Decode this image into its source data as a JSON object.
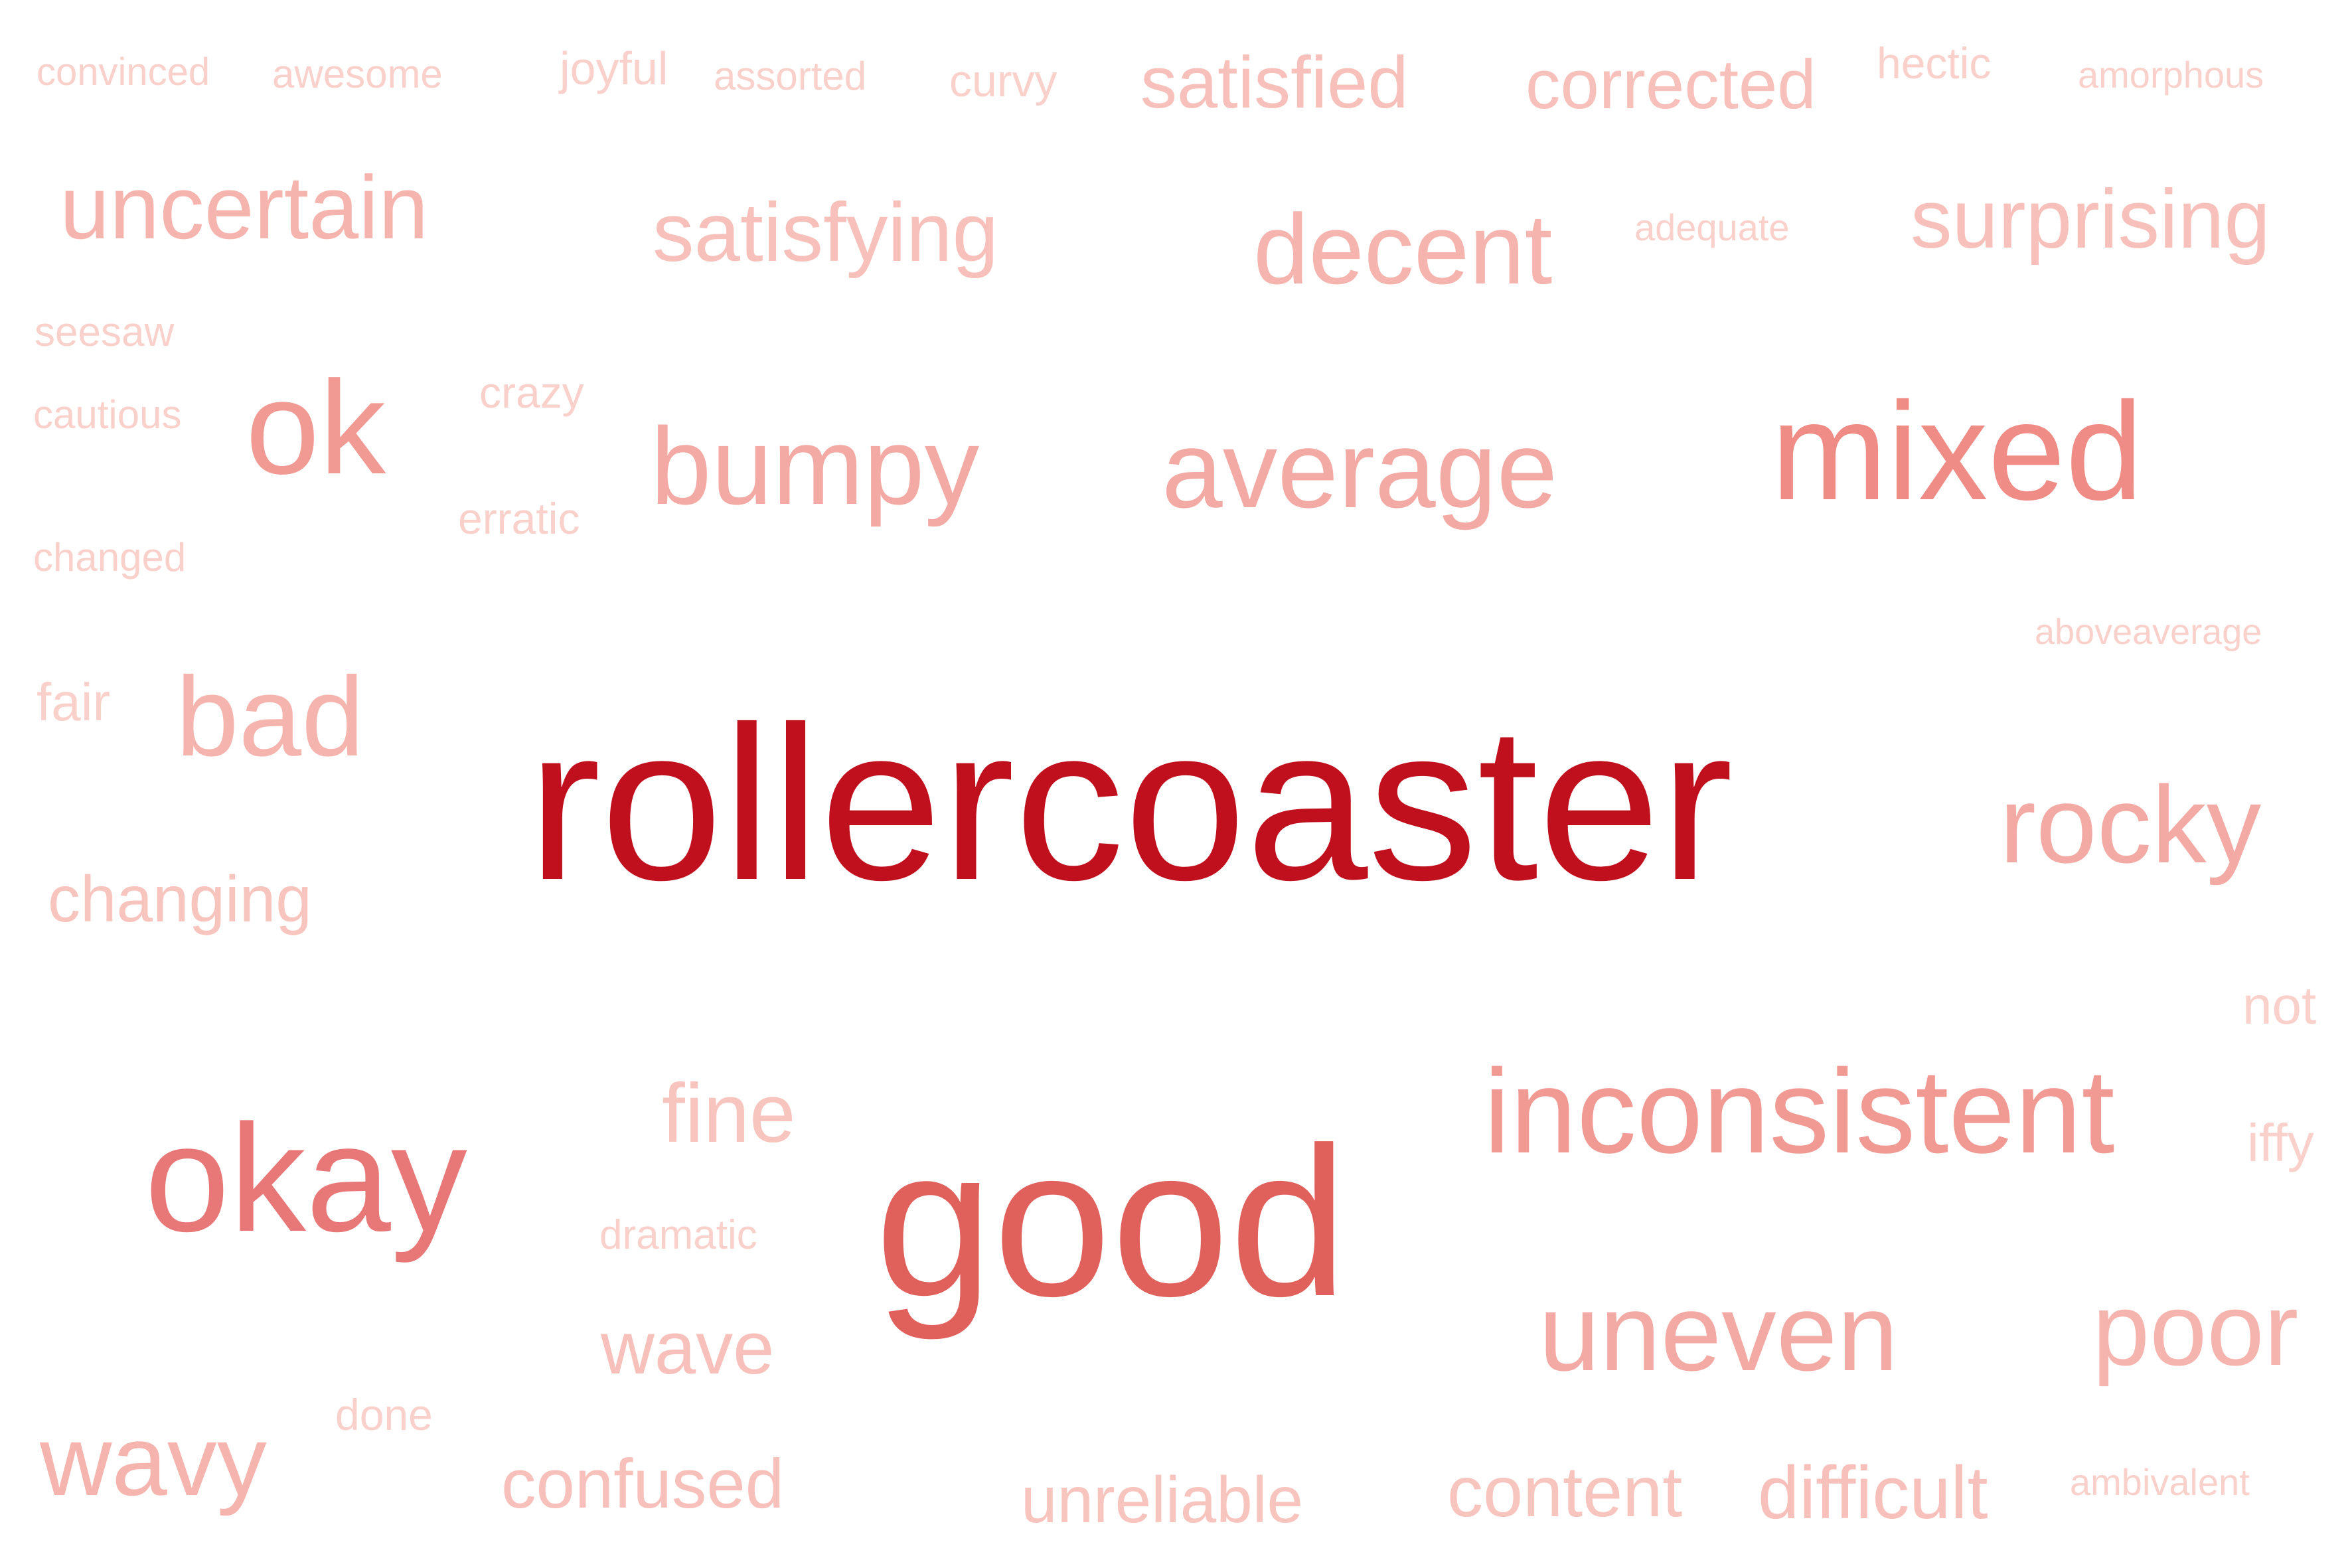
{
  "words": [
    {
      "text": "rollercoaster",
      "color": "#c0101e"
    },
    {
      "text": "good",
      "color": "#e0605c"
    },
    {
      "text": "okay",
      "color": "#e87878"
    },
    {
      "text": "mixed",
      "color": "#ef8c86"
    },
    {
      "text": "ok",
      "color": "#f19a94"
    },
    {
      "text": "inconsistent",
      "color": "#f19a94"
    },
    {
      "text": "average",
      "color": "#f4aaa4"
    },
    {
      "text": "bumpy",
      "color": "#f4aaa4"
    },
    {
      "text": "rocky",
      "color": "#f4aaa4"
    },
    {
      "text": "uneven",
      "color": "#f4aaa4"
    },
    {
      "text": "poor",
      "color": "#f6b4ae"
    },
    {
      "text": "decent",
      "color": "#f6b4ae"
    },
    {
      "text": "bad",
      "color": "#f6b4ae"
    },
    {
      "text": "uncertain",
      "color": "#f6b4ae"
    },
    {
      "text": "surprising",
      "color": "#f8c0ba"
    },
    {
      "text": "satisfying",
      "color": "#f8c0ba"
    },
    {
      "text": "wavy",
      "color": "#f6b4ae"
    },
    {
      "text": "fine",
      "color": "#f8c4be"
    },
    {
      "text": "satisfied",
      "color": "#f8c0ba"
    },
    {
      "text": "corrected",
      "color": "#f8c0ba"
    },
    {
      "text": "wave",
      "color": "#f8c0ba"
    },
    {
      "text": "confused",
      "color": "#f8c0ba"
    },
    {
      "text": "difficult",
      "color": "#f8c0ba"
    },
    {
      "text": "content",
      "color": "#f8c4be"
    },
    {
      "text": "unreliable",
      "color": "#f8c4be"
    },
    {
      "text": "changing",
      "color": "#f8c4be"
    },
    {
      "text": "fair",
      "color": "#fad0cb"
    },
    {
      "text": "not",
      "color": "#fad0cb"
    },
    {
      "text": "iffy",
      "color": "#fad0cb"
    },
    {
      "text": "joyful",
      "color": "#fad0cb"
    },
    {
      "text": "curvy",
      "color": "#fad0cb"
    },
    {
      "text": "hectic",
      "color": "#fad0cb"
    },
    {
      "text": "crazy",
      "color": "#fad0cb"
    },
    {
      "text": "erratic",
      "color": "#fad0cb"
    },
    {
      "text": "done",
      "color": "#fad0cb"
    },
    {
      "text": "seesaw",
      "color": "#fad0cb"
    },
    {
      "text": "dramatic",
      "color": "#fad0cb"
    },
    {
      "text": "awesome",
      "color": "#fad0cb"
    },
    {
      "text": "assorted",
      "color": "#fad0cb"
    },
    {
      "text": "cautious",
      "color": "#fad0cb"
    },
    {
      "text": "changed",
      "color": "#fad0cb"
    },
    {
      "text": "convinced",
      "color": "#fad0cb"
    },
    {
      "text": "amorphous",
      "color": "#fad0cb"
    },
    {
      "text": "adequate",
      "color": "#fad0cb"
    },
    {
      "text": "ambivalent",
      "color": "#fad0cb"
    },
    {
      "text": "aboveaverage",
      "color": "#fad0cb"
    }
  ]
}
